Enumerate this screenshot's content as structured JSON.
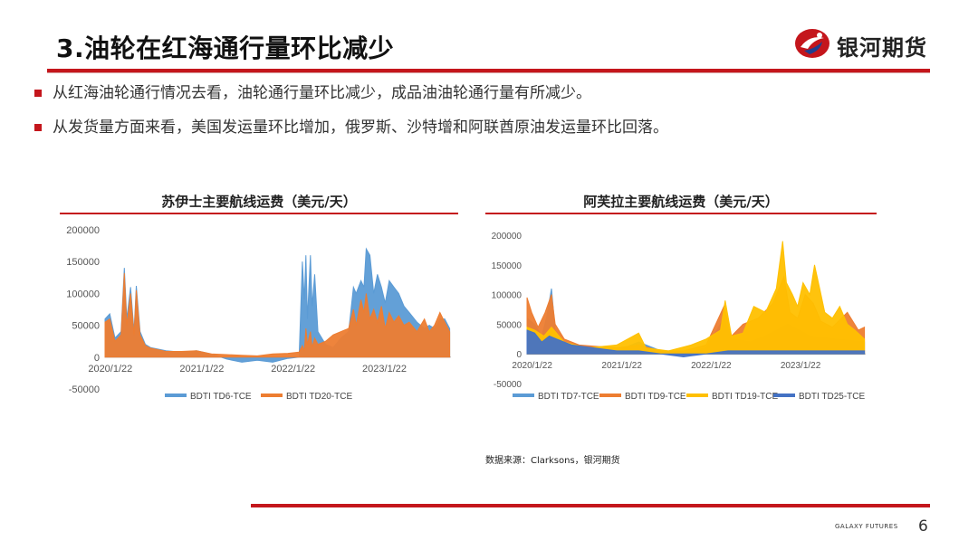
{
  "header": {
    "title": "3.油轮在红海通行量环比减少",
    "brand_name": "银河期货",
    "brand_color": "#c4161c"
  },
  "bullets": [
    "从红海油轮通行情况去看，油轮通行量环比减少，成品油油轮通行量有所减少。",
    "从发货量方面来看，美国发运量环比增加，俄罗斯、沙特增和阿联酋原油发运量环比回落。"
  ],
  "chart_data": [
    {
      "type": "area",
      "title": "苏伊士主要航线运费（美元/天）",
      "yticks": [
        "200000",
        "150000",
        "100000",
        "50000",
        "0",
        "-50000"
      ],
      "ylim": [
        -50000,
        200000
      ],
      "xticks": [
        "2020/1/22",
        "2021/1/22",
        "2022/1/22",
        "2023/1/22"
      ],
      "xlim": [
        "2020/1/1",
        "2023/10/15"
      ],
      "legend_position": "bottom",
      "series": [
        {
          "name": "BDTI TD6-TCE",
          "color": "#5b9bd5",
          "points": [
            [
              "2020/1/1",
              60000
            ],
            [
              "2020/1/20",
              68000
            ],
            [
              "2020/2/10",
              30000
            ],
            [
              "2020/3/5",
              40000
            ],
            [
              "2020/3/18",
              140000
            ],
            [
              "2020/3/28",
              60000
            ],
            [
              "2020/4/12",
              110000
            ],
            [
              "2020/4/26",
              40000
            ],
            [
              "2020/5/5",
              112000
            ],
            [
              "2020/5/20",
              40000
            ],
            [
              "2020/6/10",
              20000
            ],
            [
              "2020/7/1",
              15000
            ],
            [
              "2020/9/1",
              10000
            ],
            [
              "2020/11/1",
              8000
            ],
            [
              "2021/1/1",
              10000
            ],
            [
              "2021/3/1",
              5000
            ],
            [
              "2021/5/1",
              -3000
            ],
            [
              "2021/7/1",
              -8000
            ],
            [
              "2021/9/1",
              -5000
            ],
            [
              "2021/11/1",
              -8000
            ],
            [
              "2022/1/1",
              -2000
            ],
            [
              "2022/2/15",
              0
            ],
            [
              "2022/2/28",
              150000
            ],
            [
              "2022/3/8",
              90000
            ],
            [
              "2022/3/14",
              160000
            ],
            [
              "2022/3/20",
              60000
            ],
            [
              "2022/4/1",
              160000
            ],
            [
              "2022/4/8",
              80000
            ],
            [
              "2022/4/18",
              130000
            ],
            [
              "2022/5/1",
              40000
            ],
            [
              "2022/6/1",
              20000
            ],
            [
              "2022/7/1",
              15000
            ],
            [
              "2022/8/1",
              30000
            ],
            [
              "2022/9/1",
              40000
            ],
            [
              "2022/9/20",
              110000
            ],
            [
              "2022/10/1",
              100000
            ],
            [
              "2022/10/20",
              120000
            ],
            [
              "2022/11/1",
              110000
            ],
            [
              "2022/11/10",
              170000
            ],
            [
              "2022/11/25",
              160000
            ],
            [
              "2022/12/10",
              100000
            ],
            [
              "2022/12/25",
              130000
            ],
            [
              "2023/1/10",
              110000
            ],
            [
              "2023/1/25",
              85000
            ],
            [
              "2023/2/10",
              120000
            ],
            [
              "2023/3/1",
              110000
            ],
            [
              "2023/3/20",
              100000
            ],
            [
              "2023/4/10",
              80000
            ],
            [
              "2023/5/1",
              70000
            ],
            [
              "2023/6/1",
              55000
            ],
            [
              "2023/7/1",
              45000
            ],
            [
              "2023/7/20",
              50000
            ],
            [
              "2023/8/10",
              45000
            ],
            [
              "2023/9/1",
              60000
            ],
            [
              "2023/9/20",
              60000
            ],
            [
              "2023/10/10",
              45000
            ]
          ]
        },
        {
          "name": "BDTI TD20-TCE",
          "color": "#ed7d31",
          "points": [
            [
              "2020/1/1",
              55000
            ],
            [
              "2020/1/20",
              60000
            ],
            [
              "2020/2/10",
              25000
            ],
            [
              "2020/3/5",
              35000
            ],
            [
              "2020/3/18",
              132000
            ],
            [
              "2020/3/28",
              50000
            ],
            [
              "2020/4/12",
              100000
            ],
            [
              "2020/4/26",
              35000
            ],
            [
              "2020/5/5",
              105000
            ],
            [
              "2020/5/20",
              35000
            ],
            [
              "2020/6/10",
              18000
            ],
            [
              "2020/7/1",
              14000
            ],
            [
              "2020/9/1",
              9000
            ],
            [
              "2020/11/1",
              9000
            ],
            [
              "2021/1/1",
              10000
            ],
            [
              "2021/3/1",
              5000
            ],
            [
              "2021/5/1",
              4000
            ],
            [
              "2021/7/1",
              3000
            ],
            [
              "2021/9/1",
              2000
            ],
            [
              "2021/11/1",
              5000
            ],
            [
              "2022/1/1",
              6000
            ],
            [
              "2022/2/15",
              8000
            ],
            [
              "2022/2/28",
              18000
            ],
            [
              "2022/3/8",
              10000
            ],
            [
              "2022/3/14",
              45000
            ],
            [
              "2022/3/20",
              20000
            ],
            [
              "2022/4/1",
              40000
            ],
            [
              "2022/4/8",
              15000
            ],
            [
              "2022/4/18",
              30000
            ],
            [
              "2022/5/1",
              20000
            ],
            [
              "2022/6/1",
              25000
            ],
            [
              "2022/7/1",
              35000
            ],
            [
              "2022/8/1",
              40000
            ],
            [
              "2022/9/1",
              45000
            ],
            [
              "2022/9/20",
              75000
            ],
            [
              "2022/10/1",
              50000
            ],
            [
              "2022/10/20",
              90000
            ],
            [
              "2022/11/1",
              70000
            ],
            [
              "2022/11/10",
              100000
            ],
            [
              "2022/11/25",
              60000
            ],
            [
              "2022/12/10",
              75000
            ],
            [
              "2022/12/25",
              55000
            ],
            [
              "2023/1/10",
              80000
            ],
            [
              "2023/1/25",
              45000
            ],
            [
              "2023/2/10",
              70000
            ],
            [
              "2023/3/1",
              55000
            ],
            [
              "2023/3/20",
              65000
            ],
            [
              "2023/4/10",
              50000
            ],
            [
              "2023/5/1",
              55000
            ],
            [
              "2023/6/1",
              40000
            ],
            [
              "2023/7/1",
              60000
            ],
            [
              "2023/7/20",
              40000
            ],
            [
              "2023/8/10",
              50000
            ],
            [
              "2023/9/1",
              70000
            ],
            [
              "2023/9/20",
              55000
            ],
            [
              "2023/10/10",
              40000
            ]
          ]
        }
      ]
    },
    {
      "type": "area",
      "title": "阿芙拉主要航线运费（美元/天）",
      "yticks": [
        "200000",
        "150000",
        "100000",
        "50000",
        "0",
        "-50000"
      ],
      "ylim": [
        -50000,
        200000
      ],
      "xticks": [
        "2020/1/22",
        "2021/1/22",
        "2022/1/22",
        "2023/1/22"
      ],
      "xlim": [
        "2020/1/1",
        "2023/10/15"
      ],
      "legend_position": "bottom",
      "series": [
        {
          "name": "BDTI TD7-TCE",
          "color": "#5b9bd5",
          "points": [
            [
              "2020/1/1",
              60000
            ],
            [
              "2020/2/1",
              50000
            ],
            [
              "2020/3/1",
              30000
            ],
            [
              "2020/3/20",
              60000
            ],
            [
              "2020/4/10",
              110000
            ],
            [
              "2020/4/25",
              40000
            ],
            [
              "2020/6/1",
              20000
            ],
            [
              "2020/8/1",
              10000
            ],
            [
              "2021/1/1",
              5000
            ],
            [
              "2021/4/1",
              20000
            ],
            [
              "2021/7/1",
              5000
            ],
            [
              "2021/10/1",
              0
            ],
            [
              "2022/1/1",
              10000
            ],
            [
              "2022/3/15",
              60000
            ],
            [
              "2022/4/15",
              25000
            ],
            [
              "2022/7/1",
              20000
            ],
            [
              "2022/9/1",
              30000
            ],
            [
              "2022/12/1",
              50000
            ],
            [
              "2023/3/1",
              30000
            ],
            [
              "2023/6/1",
              25000
            ],
            [
              "2023/10/10",
              20000
            ]
          ]
        },
        {
          "name": "BDTI TD9-TCE",
          "color": "#ed7d31",
          "points": [
            [
              "2020/1/1",
              95000
            ],
            [
              "2020/1/20",
              70000
            ],
            [
              "2020/2/15",
              45000
            ],
            [
              "2020/3/15",
              70000
            ],
            [
              "2020/4/10",
              100000
            ],
            [
              "2020/4/25",
              50000
            ],
            [
              "2020/6/1",
              25000
            ],
            [
              "2020/8/1",
              15000
            ],
            [
              "2021/1/1",
              10000
            ],
            [
              "2021/4/1",
              15000
            ],
            [
              "2021/7/1",
              5000
            ],
            [
              "2021/10/1",
              5000
            ],
            [
              "2022/1/1",
              15000
            ],
            [
              "2022/3/15",
              80000
            ],
            [
              "2022/4/15",
              30000
            ],
            [
              "2022/6/1",
              50000
            ],
            [
              "2022/8/1",
              60000
            ],
            [
              "2022/10/1",
              85000
            ],
            [
              "2022/11/15",
              130000
            ],
            [
              "2022/12/10",
              70000
            ],
            [
              "2023/1/10",
              60000
            ],
            [
              "2023/2/10",
              100000
            ],
            [
              "2023/3/15",
              85000
            ],
            [
              "2023/4/15",
              55000
            ],
            [
              "2023/6/1",
              45000
            ],
            [
              "2023/8/1",
              70000
            ],
            [
              "2023/9/15",
              40000
            ],
            [
              "2023/10/10",
              45000
            ]
          ]
        },
        {
          "name": "BDTI TD19-TCE",
          "color": "#ffc000",
          "points": [
            [
              "2020/1/1",
              45000
            ],
            [
              "2020/2/1",
              40000
            ],
            [
              "2020/3/10",
              30000
            ],
            [
              "2020/4/10",
              45000
            ],
            [
              "2020/6/1",
              20000
            ],
            [
              "2020/9/1",
              10000
            ],
            [
              "2021/1/1",
              15000
            ],
            [
              "2021/4/1",
              35000
            ],
            [
              "2021/5/1",
              10000
            ],
            [
              "2021/8/1",
              5000
            ],
            [
              "2021/11/1",
              15000
            ],
            [
              "2022/1/1",
              25000
            ],
            [
              "2022/3/1",
              40000
            ],
            [
              "2022/3/20",
              90000
            ],
            [
              "2022/4/15",
              30000
            ],
            [
              "2022/6/1",
              35000
            ],
            [
              "2022/7/15",
              80000
            ],
            [
              "2022/9/1",
              70000
            ],
            [
              "2022/10/15",
              110000
            ],
            [
              "2022/11/10",
              190000
            ],
            [
              "2022/11/25",
              120000
            ],
            [
              "2022/12/20",
              100000
            ],
            [
              "2023/1/10",
              80000
            ],
            [
              "2023/2/1",
              120000
            ],
            [
              "2023/3/1",
              100000
            ],
            [
              "2023/3/20",
              150000
            ],
            [
              "2023/4/10",
              110000
            ],
            [
              "2023/5/1",
              70000
            ],
            [
              "2023/6/1",
              60000
            ],
            [
              "2023/7/1",
              80000
            ],
            [
              "2023/8/1",
              50000
            ],
            [
              "2023/9/1",
              40000
            ],
            [
              "2023/10/10",
              25000
            ]
          ]
        },
        {
          "name": "BDTI TD25-TCE",
          "color": "#4472c4",
          "points": [
            [
              "2020/1/1",
              40000
            ],
            [
              "2020/2/1",
              35000
            ],
            [
              "2020/3/1",
              20000
            ],
            [
              "2020/4/1",
              30000
            ],
            [
              "2020/5/1",
              25000
            ],
            [
              "2020/7/1",
              15000
            ],
            [
              "2020/10/1",
              10000
            ],
            [
              "2021/1/1",
              5000
            ],
            [
              "2021/4/1",
              5000
            ],
            [
              "2021/7/1",
              0
            ],
            [
              "2021/10/1",
              -5000
            ],
            [
              "2022/1/1",
              0
            ],
            [
              "2022/4/1",
              5000
            ],
            [
              "2022/7/1",
              5000
            ],
            [
              "2022/10/1",
              5000
            ],
            [
              "2023/1/1",
              5000
            ],
            [
              "2023/10/10",
              5000
            ]
          ]
        }
      ]
    }
  ],
  "source": "数据来源：Clarksons，银河期货",
  "footer": {
    "brand": "GALAXY FUTURES",
    "page_number": "6"
  }
}
